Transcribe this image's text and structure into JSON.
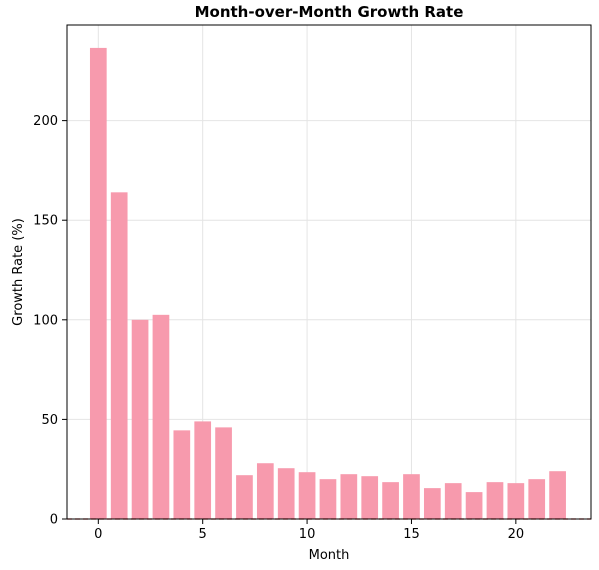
{
  "chart_data": {
    "type": "bar",
    "title": "Month-over-Month Growth Rate",
    "xlabel": "Month",
    "ylabel": "Growth Rate (%)",
    "x": [
      0,
      1,
      2,
      3,
      4,
      5,
      6,
      7,
      8,
      9,
      10,
      11,
      12,
      13,
      14,
      15,
      16,
      17,
      18,
      19,
      20,
      21,
      22
    ],
    "values": [
      236.5,
      164,
      100,
      102.5,
      44.5,
      49,
      46,
      22,
      28,
      25.5,
      23.5,
      20,
      22.5,
      21.5,
      18.5,
      22.5,
      15.5,
      18,
      13.5,
      18.5,
      18,
      20,
      24
    ],
    "xlim": [
      -1.5,
      23.6
    ],
    "ylim": [
      0,
      248
    ],
    "xticks": [
      0,
      5,
      10,
      15,
      20
    ],
    "yticks": [
      0,
      50,
      100,
      150,
      200
    ],
    "grid": true,
    "bar_color": "#f79aad",
    "reference_line": {
      "y": 0,
      "color": "#d62728",
      "style": "dashed"
    }
  }
}
